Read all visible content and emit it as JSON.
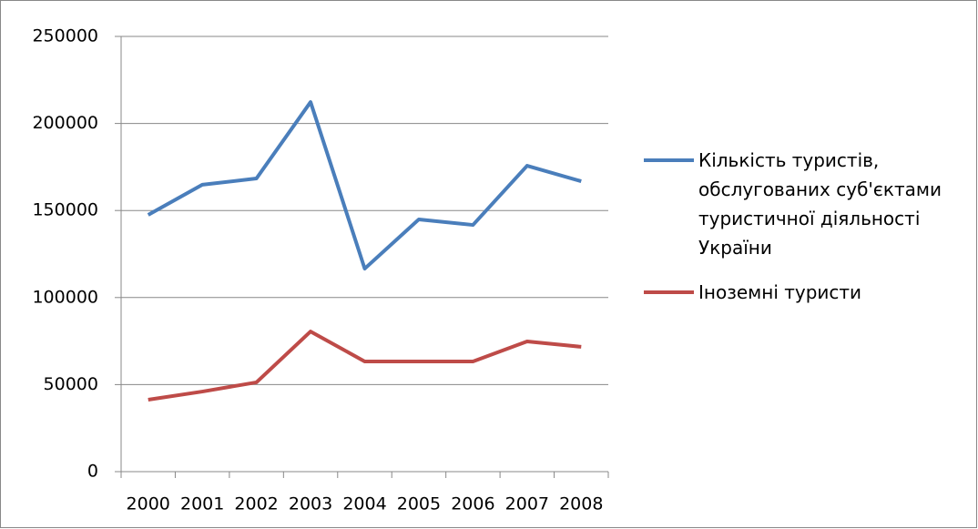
{
  "chart_data": {
    "type": "line",
    "categories": [
      "2000",
      "2001",
      "2002",
      "2003",
      "2004",
      "2005",
      "2006",
      "2007",
      "2008"
    ],
    "series": [
      {
        "name": "Кількість туристів, обслугованих суб'єктами туристичної діяльності України",
        "color": "#4a7ebb",
        "values": [
          147500,
          164800,
          168400,
          212300,
          116600,
          144900,
          141700,
          175700,
          166800
        ]
      },
      {
        "name": "Іноземні туристи",
        "color": "#be4b48",
        "values": [
          41300,
          46000,
          51300,
          80500,
          63300,
          63300,
          63300,
          74800,
          71700
        ]
      }
    ],
    "ylim": [
      0,
      250000
    ],
    "yticks": [
      0,
      50000,
      100000,
      150000,
      200000,
      250000
    ],
    "grid": true,
    "legend": "right"
  }
}
